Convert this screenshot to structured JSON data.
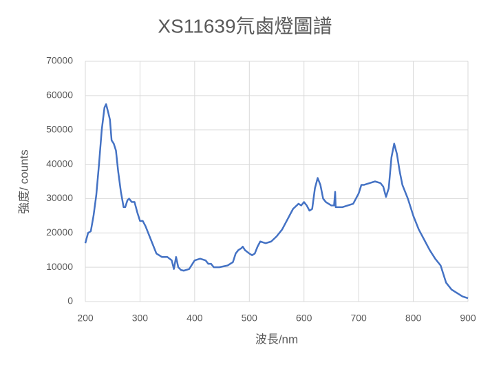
{
  "chart_data": {
    "type": "line",
    "title": "XS11639氘鹵燈圖譜",
    "x_label": "波長/nm",
    "y_label": "強度/ counts",
    "x": [
      200,
      205,
      210,
      215,
      220,
      225,
      230,
      235,
      238,
      242,
      245,
      248,
      252,
      256,
      260,
      265,
      270,
      273,
      277,
      280,
      285,
      290,
      295,
      300,
      305,
      310,
      320,
      330,
      340,
      350,
      358,
      362,
      366,
      370,
      375,
      380,
      390,
      400,
      410,
      420,
      425,
      430,
      435,
      445,
      460,
      470,
      475,
      480,
      485,
      488,
      492,
      500,
      505,
      510,
      515,
      520,
      530,
      540,
      550,
      560,
      570,
      580,
      590,
      595,
      600,
      605,
      610,
      615,
      620,
      625,
      630,
      635,
      640,
      650,
      655,
      657,
      658,
      665,
      670,
      680,
      690,
      700,
      705,
      710,
      720,
      730,
      740,
      745,
      750,
      755,
      760,
      765,
      770,
      775,
      780,
      790,
      800,
      810,
      820,
      830,
      840,
      850,
      855,
      860,
      870,
      880,
      890,
      900
    ],
    "series": [
      {
        "name": "強度",
        "color": "#4472c4",
        "values": [
          17000,
          20000,
          20500,
          25000,
          31000,
          40000,
          50000,
          56500,
          57500,
          55000,
          53000,
          47000,
          46000,
          44000,
          38000,
          32000,
          27500,
          27500,
          29500,
          30000,
          29000,
          29000,
          26000,
          23500,
          23500,
          22000,
          18000,
          14000,
          13000,
          13000,
          12000,
          9500,
          13000,
          10000,
          9200,
          9000,
          9500,
          12000,
          12500,
          12000,
          11000,
          11000,
          10000,
          10000,
          10500,
          11500,
          14000,
          15000,
          15500,
          16000,
          15000,
          14000,
          13500,
          14000,
          16000,
          17500,
          17000,
          17500,
          19000,
          21000,
          24000,
          27000,
          28500,
          28000,
          29000,
          28000,
          26500,
          27000,
          33000,
          36000,
          34000,
          30000,
          29000,
          28000,
          28000,
          32000,
          27500,
          27500,
          27500,
          28000,
          28500,
          31500,
          34000,
          34000,
          34500,
          35000,
          34500,
          33500,
          30500,
          33000,
          42000,
          46000,
          43000,
          38000,
          34000,
          30000,
          25000,
          21000,
          18000,
          15000,
          12500,
          10500,
          8000,
          5500,
          3500,
          2500,
          1500,
          1000
        ]
      }
    ],
    "xlim": [
      200,
      900
    ],
    "xticks": [
      200,
      300,
      400,
      500,
      600,
      700,
      800,
      900
    ],
    "ylim": [
      0,
      70000
    ],
    "yticks": [
      0,
      10000,
      20000,
      30000,
      40000,
      50000,
      60000,
      70000
    ],
    "grid": true
  }
}
